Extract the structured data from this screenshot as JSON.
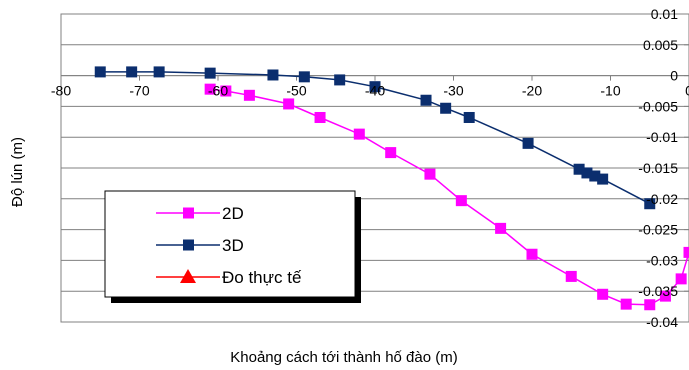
{
  "chart_data": {
    "type": "line",
    "xlabel": "Khoảng cách tới thành hố đào (m)",
    "ylabel": "Độ lún (m)",
    "xlim": [
      -80,
      0
    ],
    "ylim": [
      -0.04,
      0.01
    ],
    "x_ticks": [
      -80,
      -70,
      -60,
      -50,
      -40,
      -30,
      -20,
      -10,
      0
    ],
    "y_ticks": [
      0.01,
      0.005,
      0,
      -0.005,
      -0.01,
      -0.015,
      -0.02,
      -0.025,
      -0.03,
      -0.035,
      -0.04
    ],
    "x_tick_labels": [
      "-80",
      "-70",
      "-60",
      "-50",
      "-40",
      "-30",
      "-20",
      "-10",
      "0"
    ],
    "y_tick_labels": [
      "0.01",
      "0.005",
      "0",
      "-0.005",
      "-0.01",
      "-0.015",
      "-0.02",
      "-0.025",
      "-0.03",
      "-0.035",
      "-0.04"
    ],
    "grid": "horizontal",
    "legend_position": "lower-left",
    "series": [
      {
        "name": "2D",
        "color": "#ff00ff",
        "marker": "square",
        "x": [
          -61,
          -59,
          -56,
          -51,
          -47,
          -42,
          -38,
          -33,
          -29,
          -24,
          -20,
          -15,
          -11,
          -8,
          -5,
          -3,
          -1,
          0
        ],
        "y": [
          -0.0022,
          -0.0025,
          -0.0032,
          -0.0046,
          -0.0068,
          -0.0095,
          -0.0125,
          -0.016,
          -0.0203,
          -0.0248,
          -0.029,
          -0.0326,
          -0.0355,
          -0.0371,
          -0.0372,
          -0.0358,
          -0.033,
          -0.0287
        ]
      },
      {
        "name": "3D",
        "color": "#0b2e6e",
        "marker": "square",
        "x": [
          -75,
          -71,
          -67.5,
          -61,
          -53,
          -49,
          -44.5,
          -40,
          -33.5,
          -31,
          -28,
          -20.5,
          -14,
          -13,
          -12,
          -11,
          -5
        ],
        "y": [
          0.0006,
          0.0006,
          0.0006,
          0.0004,
          0.0001,
          -0.0002,
          -0.0007,
          -0.0018,
          -0.004,
          -0.0053,
          -0.0068,
          -0.011,
          -0.0152,
          -0.0158,
          -0.0163,
          -0.0168,
          -0.0208
        ]
      },
      {
        "name": "Đo thực tế",
        "color": "#ff0000",
        "marker": "triangle",
        "x": [],
        "y": []
      }
    ]
  }
}
